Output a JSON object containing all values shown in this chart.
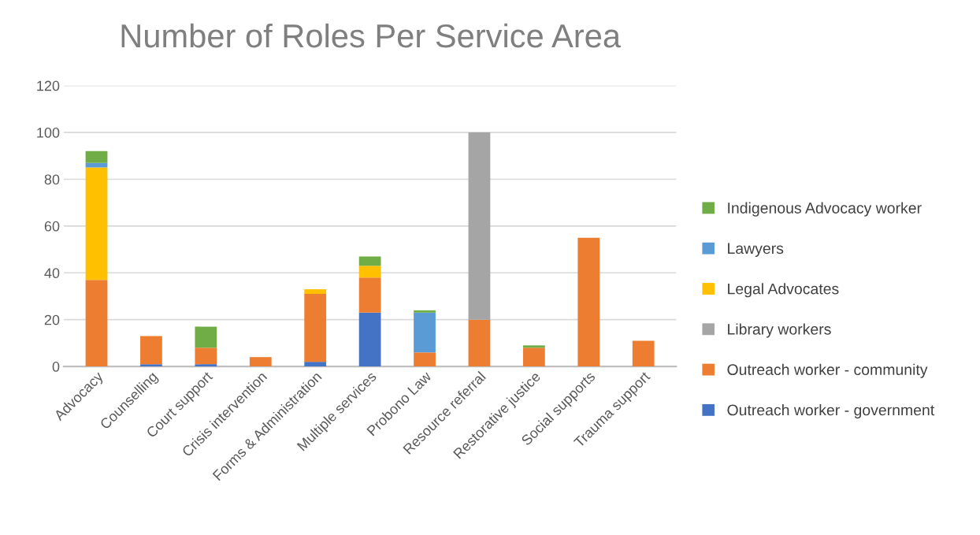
{
  "chart_data": {
    "type": "bar",
    "title": "Number of Roles Per Service Area",
    "stacked": true,
    "categories": [
      "Advocacy",
      "Counselling",
      "Court support",
      "Crisis intervention",
      "Forms & Administration",
      "Multiple services",
      "Probono Law",
      "Resource referral",
      "Restorative justice",
      "Social supports",
      "Trauma support"
    ],
    "series": [
      {
        "name": "Outreach worker - government",
        "color": "#4472c4",
        "values": [
          0,
          1,
          1,
          0,
          2,
          23,
          0,
          0,
          0,
          0,
          0
        ]
      },
      {
        "name": "Outreach worker - community",
        "color": "#ed7d31",
        "values": [
          37,
          12,
          7,
          4,
          29,
          15,
          6,
          20,
          8,
          55,
          11
        ]
      },
      {
        "name": "Library workers",
        "color": "#a5a5a5",
        "values": [
          0,
          0,
          0,
          0,
          0,
          0,
          0,
          80,
          0,
          0,
          0
        ]
      },
      {
        "name": "Legal Advocates",
        "color": "#ffc000",
        "values": [
          48,
          0,
          0,
          0,
          2,
          5,
          0,
          0,
          0,
          0,
          0
        ]
      },
      {
        "name": "Lawyers",
        "color": "#5b9bd5",
        "values": [
          2,
          0,
          0,
          0,
          0,
          0,
          17,
          0,
          0,
          0,
          0
        ]
      },
      {
        "name": "Indigenous Advocacy worker",
        "color": "#70ad47",
        "values": [
          5,
          0,
          9,
          0,
          0,
          4,
          1,
          0,
          1,
          0,
          0
        ]
      }
    ],
    "ylim": [
      0,
      120
    ],
    "yticks": [
      0,
      20,
      40,
      60,
      80,
      100,
      120
    ],
    "grid": "y",
    "legend": "right"
  }
}
